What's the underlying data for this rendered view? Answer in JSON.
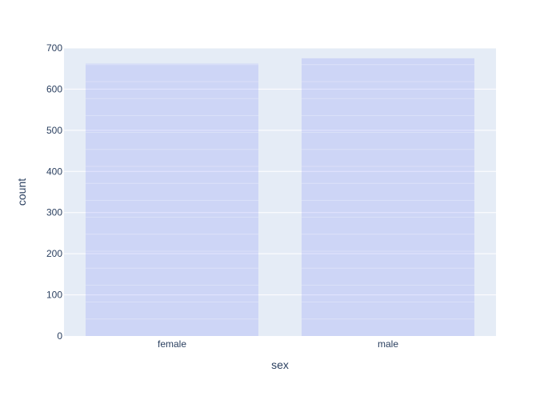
{
  "chart_data": {
    "type": "bar",
    "categories": [
      "female",
      "male"
    ],
    "values": [
      662,
      675
    ],
    "xlabel": "sex",
    "ylabel": "count",
    "ylim": [
      0,
      700
    ],
    "yticks": [
      0,
      100,
      200,
      300,
      400,
      500,
      600,
      700
    ],
    "grid": true,
    "colors": {
      "plot_background": "#e5ecf6",
      "gridline": "#ffffff",
      "bar_fill": "#636efa",
      "tick_text": "#2a3f5f"
    }
  }
}
